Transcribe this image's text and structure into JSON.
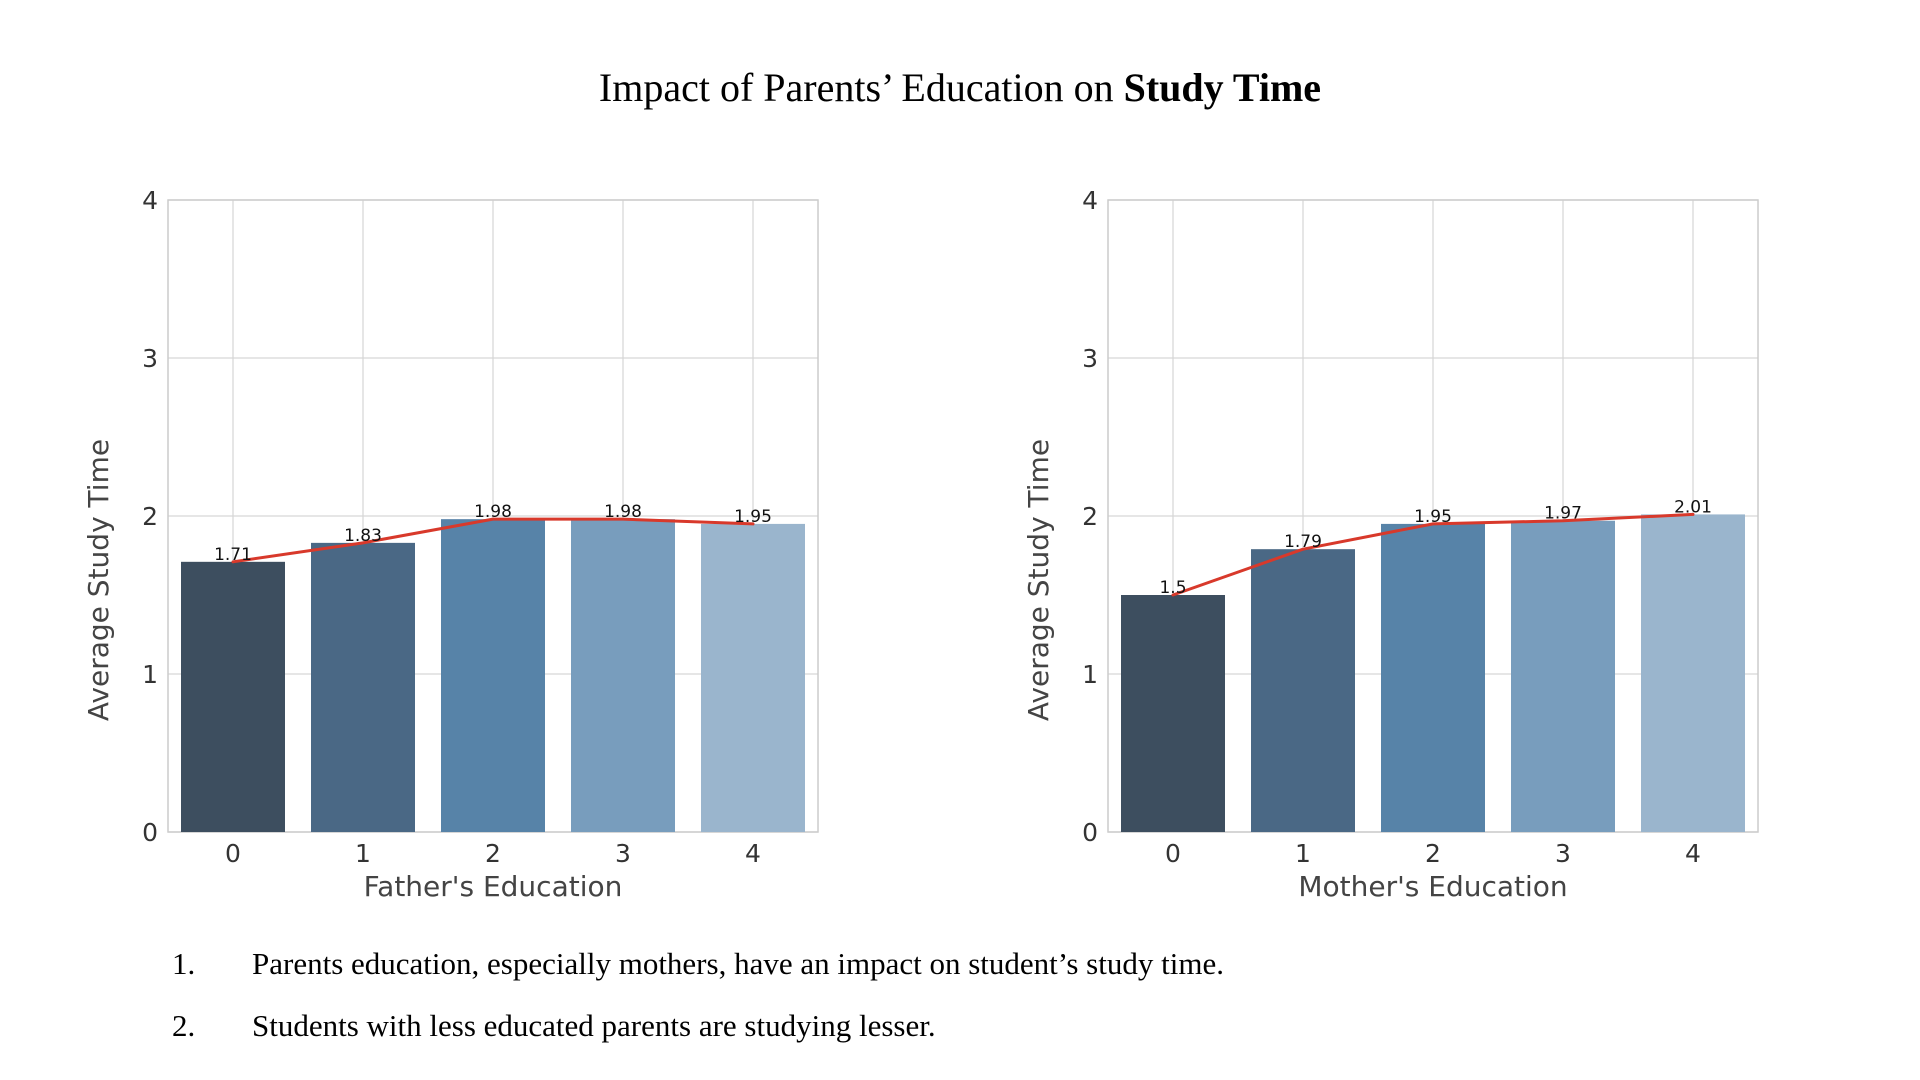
{
  "page": {
    "title_plain": "Impact of Parents’ Education on ",
    "title_bold": "Study Time"
  },
  "chart_data": [
    {
      "type": "bar",
      "overlay": "line",
      "categories": [
        "0",
        "1",
        "2",
        "3",
        "4"
      ],
      "values": [
        1.71,
        1.83,
        1.98,
        1.98,
        1.95
      ],
      "value_labels": [
        "1.71",
        "1.83",
        "1.98",
        "1.98",
        "1.95"
      ],
      "xlabel": "Father's Education",
      "ylabel": "Average Study Time",
      "ylim": [
        0,
        4
      ],
      "yticks": [
        "0",
        "1",
        "2",
        "3",
        "4"
      ],
      "grid": true,
      "bar_colors": [
        "#3d4e5f",
        "#4a6885",
        "#5783a8",
        "#789dbd",
        "#9ab5cd"
      ],
      "line_color": "#d8392b"
    },
    {
      "type": "bar",
      "overlay": "line",
      "categories": [
        "0",
        "1",
        "2",
        "3",
        "4"
      ],
      "values": [
        1.5,
        1.79,
        1.95,
        1.97,
        2.01
      ],
      "value_labels": [
        "1.5",
        "1.79",
        "1.95",
        "1.97",
        "2.01"
      ],
      "xlabel": "Mother's Education",
      "ylabel": "Average Study Time",
      "ylim": [
        0,
        4
      ],
      "yticks": [
        "0",
        "1",
        "2",
        "3",
        "4"
      ],
      "grid": true,
      "bar_colors": [
        "#3d4e5f",
        "#4a6885",
        "#5783a8",
        "#789dbd",
        "#9ab5cd"
      ],
      "line_color": "#d8392b"
    }
  ],
  "notes": [
    {
      "number": "1.",
      "text": "Parents education, especially mothers, have an impact on student’s study time."
    },
    {
      "number": "2.",
      "text": "Students with less educated parents are studying lesser."
    }
  ]
}
